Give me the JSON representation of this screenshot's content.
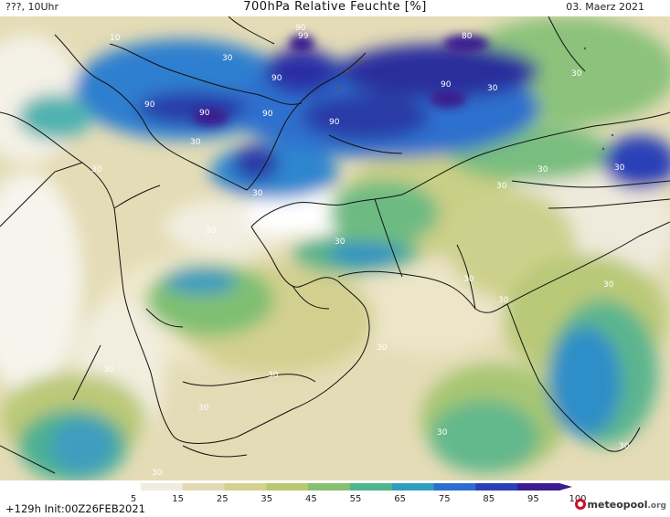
{
  "header": {
    "left": "???, 10Uhr",
    "title": "700hPa Relative Feuchte [%]",
    "right": "03. Maerz 2021"
  },
  "footer": {
    "run": "+129h  Init:00Z26FEB2021",
    "brand": "meteopool",
    "brand_suffix": ".org"
  },
  "legend": {
    "ticks": [
      "5",
      "15",
      "25",
      "35",
      "45",
      "55",
      "65",
      "75",
      "85",
      "95",
      "100"
    ],
    "colors": [
      "#ffffff",
      "#f0ece0",
      "#e2d9b3",
      "#d4d18f",
      "#b7c970",
      "#86bf6f",
      "#4fb58f",
      "#2f9fbf",
      "#2a6fcf",
      "#2b3fb7",
      "#3a1d8f"
    ]
  },
  "contour_labels": [
    "10",
    "30",
    "90",
    "99",
    "80",
    "30",
    "90",
    "90",
    "90",
    "90",
    "90",
    "90",
    "30",
    "30",
    "30",
    "30",
    "30",
    "30",
    "30",
    "30",
    "30",
    "30",
    "30",
    "30",
    "30",
    "30",
    "30",
    "30",
    "30",
    "30",
    "30"
  ]
}
